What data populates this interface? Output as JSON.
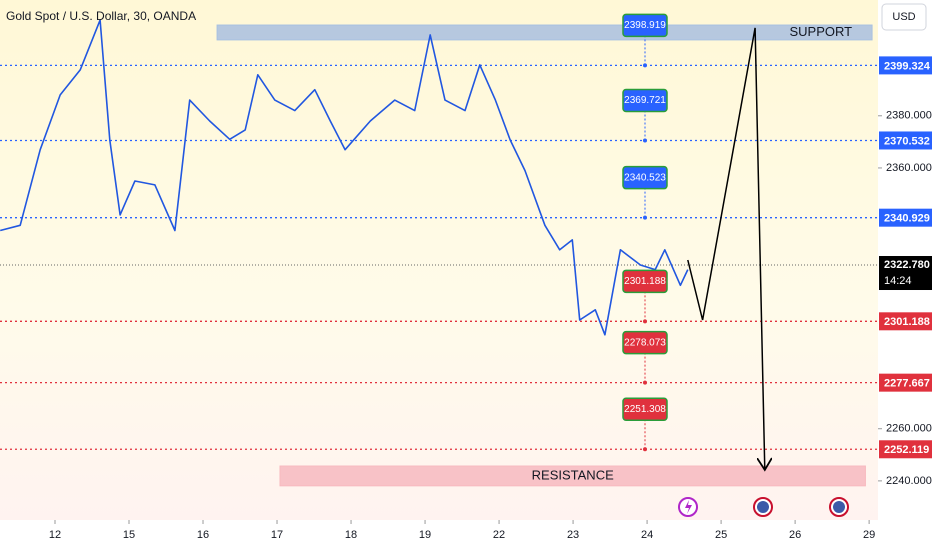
{
  "chart_data": {
    "type": "line",
    "title": "Gold Spot / U.S. Dollar, 30, OANDA",
    "currency": "USD",
    "color": "#2157e0",
    "x": [
      -0.74,
      -0.47,
      -0.2,
      0.07,
      0.34,
      0.61,
      0.74,
      0.88,
      1.08,
      1.35,
      1.62,
      1.82,
      2.09,
      2.36,
      2.57,
      2.74,
      2.97,
      3.24,
      3.51,
      3.72,
      3.92,
      4.26,
      4.59,
      4.86,
      5.07,
      5.27,
      5.54,
      5.74,
      5.95,
      6.15,
      6.35,
      6.62,
      6.82,
      6.99,
      7.09,
      7.3,
      7.43,
      7.64,
      7.91,
      8.11,
      8.24,
      8.45,
      8.55
    ],
    "values": [
      2336,
      2338,
      2367,
      2388,
      2397.6,
      2416.7,
      2370.7,
      2342,
      2355,
      2353.5,
      2336,
      2386,
      2378,
      2371,
      2374.6,
      2395.7,
      2386,
      2382,
      2390,
      2378,
      2367,
      2378,
      2386,
      2382,
      2411,
      2386,
      2382,
      2399.5,
      2386,
      2370.7,
      2359,
      2338,
      2328.6,
      2332.4,
      2301.7,
      2305.6,
      2296,
      2328.6,
      2322.8,
      2321,
      2328.6,
      2315,
      2321
    ],
    "projection": {
      "color": "#000000",
      "x": [
        8.55,
        8.75,
        9.46,
        9.59
      ],
      "values": [
        2324.7,
        2301.7,
        2413.7,
        2244.2
      ]
    },
    "zones": [
      {
        "label": "SUPPORT",
        "top": 2414.8,
        "bottom": 2409.1,
        "x0": 2.19,
        "x1": 11.04,
        "color": "#a9c0e0"
      },
      {
        "label": "RESISTANCE",
        "top": 2245.7,
        "bottom": 2238.1,
        "x0": 3.04,
        "x1": 10.95,
        "color": "#f7b9bf"
      }
    ],
    "levels": [
      {
        "value": 2399.324,
        "label": "2399.324",
        "color": "#2962ff"
      },
      {
        "value": 2370.532,
        "label": "2370.532",
        "color": "#2962ff"
      },
      {
        "value": 2340.929,
        "label": "2340.929",
        "color": "#2962ff"
      },
      {
        "value": 2301.188,
        "label": "2301.188",
        "color": "#e0313d"
      },
      {
        "value": 2277.667,
        "label": "2277.667",
        "color": "#e0313d"
      },
      {
        "value": 2252.119,
        "label": "2252.119",
        "color": "#e0313d"
      }
    ],
    "targets": [
      {
        "label": "2398.919",
        "level": 2399.324,
        "color": "#2962ff"
      },
      {
        "label": "2369.721",
        "level": 2370.532,
        "color": "#2962ff"
      },
      {
        "label": "2340.523",
        "level": 2340.929,
        "color": "#2962ff"
      },
      {
        "label": "2301.188",
        "level": 2301.188,
        "color": "#e0313d"
      },
      {
        "label": "2278.073",
        "level": 2277.667,
        "color": "#e0313d"
      },
      {
        "label": "2251.308",
        "level": 2252.119,
        "color": "#e0313d"
      }
    ],
    "last_price": {
      "value": 2322.78,
      "label": "2322.780",
      "countdown": "14:24"
    },
    "ylim": [
      2225,
      2424.4
    ],
    "yticks": [
      {
        "value": 2380,
        "label": "2380.000"
      },
      {
        "value": 2360,
        "label": "2360.000"
      },
      {
        "value": 2260,
        "label": "2260.000"
      },
      {
        "value": 2240,
        "label": "2240.000"
      }
    ],
    "xlim": [
      -0.743,
      11.12
    ],
    "xticks": [
      {
        "value": 0,
        "label": "12"
      },
      {
        "value": 1,
        "label": "15"
      },
      {
        "value": 2,
        "label": "16"
      },
      {
        "value": 3,
        "label": "17"
      },
      {
        "value": 4,
        "label": "18"
      },
      {
        "value": 5,
        "label": "19"
      },
      {
        "value": 6,
        "label": "22"
      },
      {
        "value": 7,
        "label": "23"
      },
      {
        "value": 8,
        "label": "24"
      },
      {
        "value": 9,
        "label": "25"
      },
      {
        "value": 10,
        "label": "26"
      },
      {
        "value": 11,
        "label": "29"
      }
    ]
  }
}
